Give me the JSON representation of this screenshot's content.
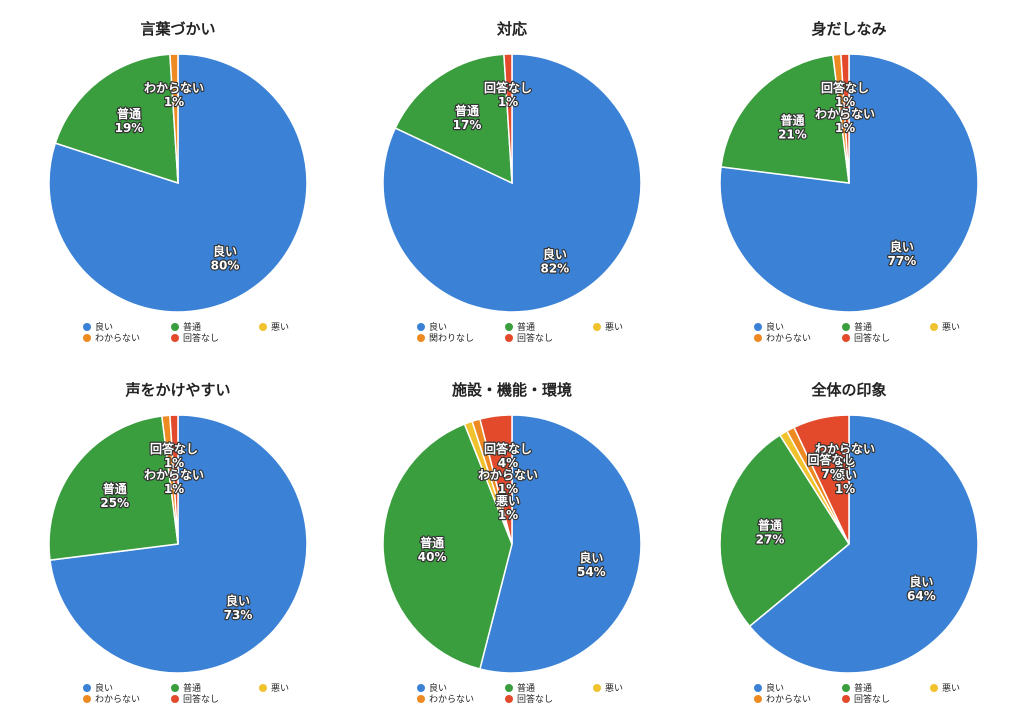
{
  "colors": {
    "良い": "#3b82d6",
    "普通": "#3a9d3e",
    "悪い": "#efc22e",
    "わからない": "#ee8a22",
    "関わりなし": "#ee8a22",
    "回答なし": "#e24a2b"
  },
  "chart_data": [
    {
      "type": "pie",
      "title": "言葉づかい",
      "slices": [
        {
          "name": "良い",
          "value": 80,
          "label": "80%"
        },
        {
          "name": "普通",
          "value": 19,
          "label": "19%"
        },
        {
          "name": "わからない",
          "value": 1,
          "label": "1%"
        }
      ],
      "legend": [
        "良い",
        "普通",
        "悪い",
        "わからない",
        "回答なし"
      ]
    },
    {
      "type": "pie",
      "title": "対応",
      "slices": [
        {
          "name": "良い",
          "value": 82,
          "label": "82%"
        },
        {
          "name": "普通",
          "value": 17,
          "label": "17%"
        },
        {
          "name": "回答なし",
          "value": 1,
          "label": "1%"
        }
      ],
      "legend": [
        "良い",
        "普通",
        "悪い",
        "関わりなし",
        "回答なし"
      ]
    },
    {
      "type": "pie",
      "title": "身だしなみ",
      "slices": [
        {
          "name": "良い",
          "value": 77,
          "label": "77%"
        },
        {
          "name": "普通",
          "value": 21,
          "label": "21%"
        },
        {
          "name": "わからない",
          "value": 1,
          "label": "1%"
        },
        {
          "name": "回答なし",
          "value": 1,
          "label": "1%"
        }
      ],
      "legend": [
        "良い",
        "普通",
        "悪い",
        "わからない",
        "回答なし"
      ]
    },
    {
      "type": "pie",
      "title": "声をかけやすい",
      "slices": [
        {
          "name": "良い",
          "value": 73,
          "label": "73%"
        },
        {
          "name": "普通",
          "value": 25,
          "label": "25%"
        },
        {
          "name": "わからない",
          "value": 1,
          "label": "1%"
        },
        {
          "name": "回答なし",
          "value": 1,
          "label": "1%"
        }
      ],
      "legend": [
        "良い",
        "普通",
        "悪い",
        "わからない",
        "回答なし"
      ]
    },
    {
      "type": "pie",
      "title": "施設・機能・環境",
      "slices": [
        {
          "name": "良い",
          "value": 54,
          "label": "54%"
        },
        {
          "name": "普通",
          "value": 40,
          "label": "40%"
        },
        {
          "name": "悪い",
          "value": 1,
          "label": "1%"
        },
        {
          "name": "わからない",
          "value": 1,
          "label": "1%"
        },
        {
          "name": "回答なし",
          "value": 4,
          "label": "4%"
        }
      ],
      "legend": [
        "良い",
        "普通",
        "悪い",
        "わからない",
        "回答なし"
      ]
    },
    {
      "type": "pie",
      "title": "全体の印象",
      "slices": [
        {
          "name": "良い",
          "value": 64,
          "label": "64%"
        },
        {
          "name": "普通",
          "value": 27,
          "label": "27%"
        },
        {
          "name": "悪い",
          "value": 1,
          "label": "1%"
        },
        {
          "name": "わからない",
          "value": 1,
          "label": "1%"
        },
        {
          "name": "回答なし",
          "value": 7,
          "label": "7%"
        }
      ],
      "legend": [
        "良い",
        "普通",
        "悪い",
        "わからない",
        "回答なし"
      ]
    }
  ]
}
